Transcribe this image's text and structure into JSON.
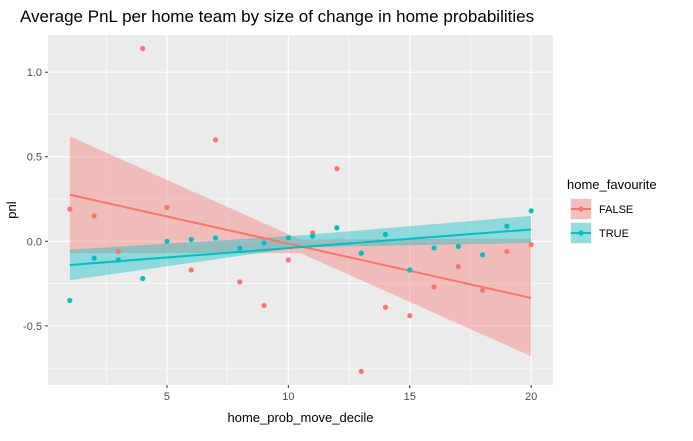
{
  "chart_data": {
    "type": "scatter",
    "title": "Average PnL per home team by size of change in home probabilities",
    "xlabel": "home_prob_move_decile",
    "ylabel": "pnl",
    "xlim": [
      0.1,
      20.9
    ],
    "ylim": [
      -0.85,
      1.22
    ],
    "x_ticks": [
      5,
      10,
      15,
      20
    ],
    "y_ticks": [
      -0.5,
      0.0,
      0.5,
      1.0
    ],
    "y_tick_labels": [
      "-0.5",
      "0.0",
      "0.5",
      "1.0"
    ],
    "grid": true,
    "legend": {
      "title": "home_favourite",
      "position": "right"
    },
    "colors": {
      "panel": "#ebebeb",
      "grid": "#ffffff"
    },
    "series": [
      {
        "name": "FALSE",
        "color": "#f8766d",
        "points": [
          [
            1,
            0.19
          ],
          [
            2,
            0.15
          ],
          [
            3,
            -0.06
          ],
          [
            4,
            1.14
          ],
          [
            5,
            0.2
          ],
          [
            6,
            -0.17
          ],
          [
            7,
            0.6
          ],
          [
            8,
            -0.24
          ],
          [
            9,
            -0.38
          ],
          [
            10,
            -0.11
          ],
          [
            11,
            0.05
          ],
          [
            12,
            0.43
          ],
          [
            13,
            -0.77
          ],
          [
            14,
            -0.39
          ],
          [
            15,
            -0.44
          ],
          [
            16,
            -0.27
          ],
          [
            17,
            -0.15
          ],
          [
            18,
            -0.29
          ],
          [
            19,
            -0.06
          ],
          [
            20,
            -0.02
          ]
        ],
        "fit": {
          "x": [
            1,
            20
          ],
          "y": [
            0.275,
            -0.335
          ]
        },
        "ribbon": {
          "x": [
            1,
            10.5,
            20
          ],
          "lower": [
            -0.07,
            -0.07,
            -0.68
          ],
          "upper": [
            0.62,
            0.01,
            0.015
          ]
        }
      },
      {
        "name": "TRUE",
        "color": "#00bfc4",
        "points": [
          [
            1,
            -0.35
          ],
          [
            2,
            -0.1
          ],
          [
            3,
            -0.11
          ],
          [
            4,
            -0.22
          ],
          [
            5,
            0.0
          ],
          [
            6,
            0.01
          ],
          [
            7,
            0.02
          ],
          [
            8,
            -0.04
          ],
          [
            9,
            -0.01
          ],
          [
            10,
            0.02
          ],
          [
            11,
            0.03
          ],
          [
            12,
            0.08
          ],
          [
            13,
            -0.07
          ],
          [
            14,
            0.04
          ],
          [
            15,
            -0.17
          ],
          [
            16,
            -0.04
          ],
          [
            17,
            -0.03
          ],
          [
            18,
            -0.08
          ],
          [
            19,
            0.09
          ],
          [
            20,
            0.18
          ]
        ],
        "fit": {
          "x": [
            1,
            20
          ],
          "y": [
            -0.14,
            0.07
          ]
        },
        "ribbon": {
          "x": [
            1,
            10.5,
            20
          ],
          "lower": [
            -0.23,
            -0.035,
            -0.01
          ],
          "upper": [
            -0.05,
            0.035,
            0.15
          ]
        }
      }
    ]
  }
}
